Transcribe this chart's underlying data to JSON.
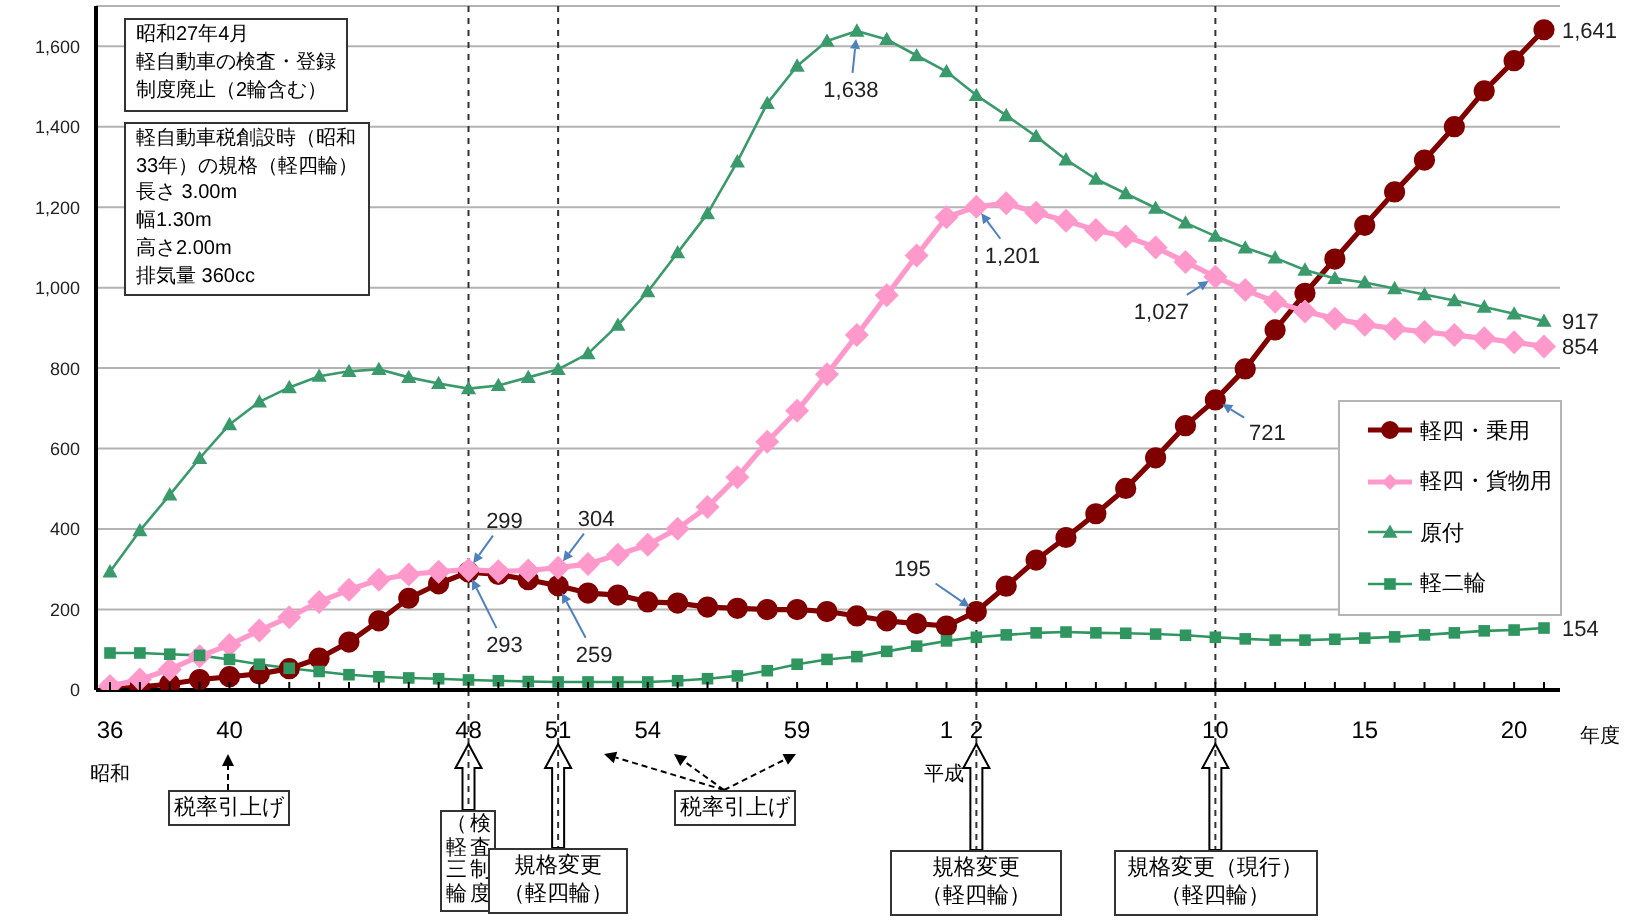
{
  "chart_data": {
    "type": "line",
    "categories": [
      "36",
      null,
      null,
      null,
      "40",
      null,
      null,
      null,
      null,
      null,
      null,
      null,
      "48",
      null,
      null,
      "51",
      null,
      null,
      "54",
      null,
      null,
      null,
      null,
      "59",
      null,
      null,
      null,
      null,
      "1",
      "2",
      null,
      null,
      null,
      null,
      null,
      null,
      null,
      "10",
      null,
      null,
      null,
      null,
      "15",
      null,
      null,
      null,
      null,
      "20",
      null
    ],
    "xlabel": "年度",
    "ylim": [
      0,
      1700
    ],
    "yticks": [
      0,
      200,
      400,
      600,
      800,
      {
        "value": 1000,
        "label": "1,000"
      },
      {
        "value": 1200,
        "label": "1,200"
      },
      {
        "value": 1400,
        "label": "1,400"
      },
      {
        "value": 1600,
        "label": "1,600"
      }
    ],
    "grid": "y",
    "legend": "right",
    "series": [
      {
        "name": "軽四・乗用",
        "color": "#800000",
        "marker": "circle",
        "values": [
          2,
          7,
          15,
          26,
          33,
          40,
          53,
          79,
          119,
          172,
          228,
          264,
          293,
          287,
          274,
          259,
          241,
          236,
          219,
          216,
          206,
          203,
          200,
          200,
          195,
          184,
          172,
          165,
          159,
          195,
          258,
          323,
          379,
          438,
          501,
          577,
          657,
          721,
          798,
          895,
          986,
          1071,
          1155,
          1238,
          1317,
          1400,
          1489,
          1564,
          1641
        ],
        "value_labels": [
          null,
          null,
          null,
          null,
          null,
          null,
          null,
          null,
          null,
          null,
          null,
          null,
          "293",
          null,
          null,
          "259",
          null,
          null,
          null,
          null,
          null,
          null,
          null,
          null,
          null,
          null,
          null,
          null,
          null,
          "195",
          null,
          null,
          null,
          null,
          null,
          null,
          null,
          "721",
          null,
          null,
          null,
          null,
          null,
          null,
          null,
          null,
          null,
          null,
          "1,641"
        ]
      },
      {
        "name": "軽四・貨物用",
        "color": "#ff99cc",
        "marker": "diamond",
        "values": [
          10,
          26,
          51,
          84,
          112,
          148,
          181,
          219,
          249,
          274,
          287,
          294,
          299,
          295,
          297,
          304,
          313,
          336,
          361,
          401,
          455,
          529,
          617,
          694,
          785,
          882,
          981,
          1080,
          1175,
          1201,
          1210,
          1186,
          1166,
          1143,
          1127,
          1100,
          1064,
          1027,
          994,
          965,
          941,
          923,
          908,
          898,
          890,
          882,
          874,
          864,
          854
        ],
        "value_labels": [
          null,
          null,
          null,
          null,
          null,
          null,
          null,
          null,
          null,
          null,
          null,
          null,
          "299",
          null,
          null,
          "304",
          null,
          null,
          null,
          null,
          null,
          null,
          null,
          null,
          null,
          null,
          null,
          null,
          null,
          "1,201",
          null,
          null,
          null,
          null,
          null,
          null,
          null,
          "1,027",
          null,
          null,
          null,
          null,
          null,
          null,
          null,
          null,
          null,
          null,
          "854"
        ]
      },
      {
        "name": "原付",
        "color": "#3a9a6c",
        "marker": "triangle",
        "values": [
          294,
          396,
          485,
          576,
          660,
          716,
          752,
          780,
          792,
          797,
          777,
          762,
          749,
          757,
          777,
          797,
          836,
          907,
          990,
          1087,
          1184,
          1313,
          1458,
          1551,
          1613,
          1638,
          1617,
          1577,
          1537,
          1478,
          1428,
          1376,
          1318,
          1270,
          1234,
          1198,
          1161,
          1128,
          1099,
          1074,
          1044,
          1023,
          1013,
          998,
          983,
          968,
          952,
          935,
          917
        ],
        "value_labels": [
          null,
          null,
          null,
          null,
          null,
          null,
          null,
          null,
          null,
          null,
          null,
          null,
          null,
          null,
          null,
          null,
          null,
          null,
          null,
          null,
          null,
          null,
          null,
          null,
          null,
          "1,638",
          null,
          null,
          null,
          null,
          null,
          null,
          null,
          null,
          null,
          null,
          null,
          null,
          null,
          null,
          null,
          null,
          null,
          null,
          null,
          null,
          null,
          null,
          "917"
        ]
      },
      {
        "name": "軽二輪",
        "color": "#2f9660",
        "marker": "square",
        "values": [
          92,
          92,
          89,
          86,
          76,
          64,
          54,
          46,
          38,
          33,
          30,
          28,
          25,
          23,
          21,
          20,
          20,
          20,
          20,
          23,
          28,
          35,
          48,
          64,
          76,
          83,
          96,
          109,
          122,
          131,
          137,
          142,
          144,
          142,
          141,
          139,
          136,
          131,
          127,
          124,
          124,
          126,
          129,
          132,
          137,
          142,
          147,
          149,
          154
        ],
        "value_labels": [
          null,
          null,
          null,
          null,
          null,
          null,
          null,
          null,
          null,
          null,
          null,
          null,
          null,
          null,
          null,
          null,
          null,
          null,
          null,
          null,
          null,
          null,
          null,
          null,
          null,
          null,
          null,
          null,
          null,
          null,
          null,
          null,
          null,
          null,
          null,
          null,
          null,
          null,
          null,
          null,
          null,
          null,
          null,
          null,
          null,
          null,
          null,
          null,
          "154"
        ]
      }
    ],
    "ref_lines": [
      {
        "axis": "x",
        "value": "48",
        "label": "検査制度（軽三輪",
        "line_style": "dashed",
        "color": "#333333"
      },
      {
        "axis": "x",
        "value": "51",
        "label": "規格変更（軽四輪）",
        "line_style": "dashed",
        "color": "#333333"
      },
      {
        "axis": "x",
        "value": "2",
        "label": "規格変更（軽四輪）",
        "line_style": "dashed",
        "color": "#333333"
      },
      {
        "axis": "x",
        "value": "10",
        "label": "規格変更（現行）（軽四輪）",
        "line_style": "dashed",
        "color": "#333333"
      }
    ],
    "annotations": [
      "昭和27年4月軽自動車の検査・登録制度廃止（2輪含む）",
      "軽自動車税創設時（昭和33年）の規格（軽四輪）長さ 3.00m幅1.30m高さ2.00m排気量 360cc",
      "昭和",
      "平成",
      "税率引上げ",
      "税率引上げ"
    ]
  }
}
